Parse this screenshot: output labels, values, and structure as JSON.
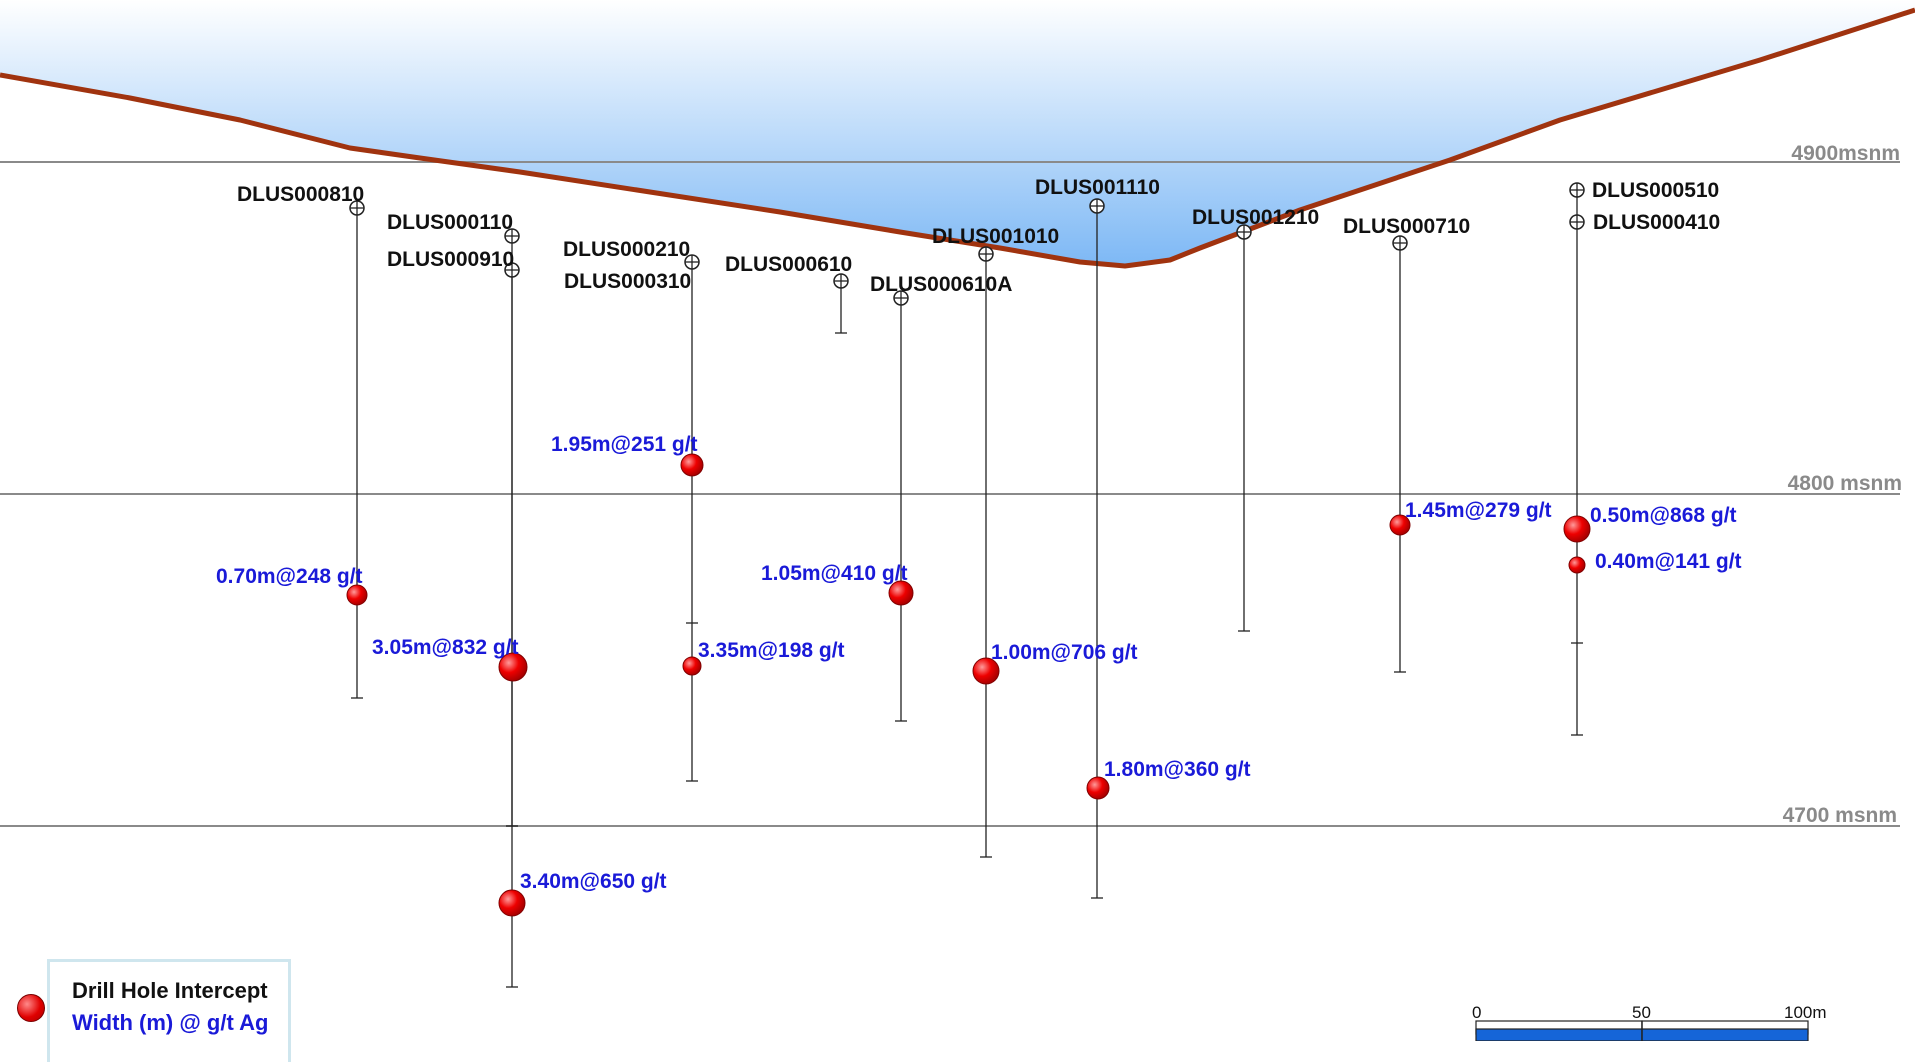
{
  "elevations": [
    {
      "label": "4900msnm",
      "y": 4900
    },
    {
      "label": "4800 msnm",
      "y": 4800
    },
    {
      "label": "4700 msnm",
      "y": 4700
    }
  ],
  "holes": [
    {
      "id": "DLUS000810",
      "collar_elev": 4886,
      "depth_elev": 4747
    },
    {
      "id": "DLUS000110",
      "collar_elev": 4877,
      "depth_elev": 4700
    },
    {
      "id": "DLUS000910",
      "collar_elev": 4867,
      "depth_elev": 4625
    },
    {
      "id": "DLUS000210",
      "collar_elev": 4868,
      "depth_elev": 4762
    },
    {
      "id": "DLUS000310",
      "collar_elev": 4868,
      "depth_elev": 4728
    },
    {
      "id": "DLUS000610",
      "collar_elev": 4864,
      "depth_elev": 4846
    },
    {
      "id": "DLUS000610A",
      "collar_elev": 4859,
      "depth_elev": 4759
    },
    {
      "id": "DLUS001010",
      "collar_elev": 4872,
      "depth_elev": 4710
    },
    {
      "id": "DLUS001110",
      "collar_elev": 4887,
      "depth_elev": 4698
    },
    {
      "id": "DLUS001210",
      "collar_elev": 4879,
      "depth_elev": 4772
    },
    {
      "id": "DLUS000710",
      "collar_elev": 4875,
      "depth_elev": 4750
    },
    {
      "id": "DLUS000510",
      "collar_elev": 4891,
      "depth_elev": 4738
    },
    {
      "id": "DLUS000410",
      "collar_elev": 4881,
      "depth_elev": 4766
    }
  ],
  "intercepts": [
    {
      "label": "0.70m@248 g/t",
      "width_m": 0.7,
      "grade_gpt": 248
    },
    {
      "label": "3.05m@832 g/t",
      "width_m": 3.05,
      "grade_gpt": 832
    },
    {
      "label": "3.40m@650 g/t",
      "width_m": 3.4,
      "grade_gpt": 650
    },
    {
      "label": "1.95m@251 g/t",
      "width_m": 1.95,
      "grade_gpt": 251
    },
    {
      "label": "3.35m@198 g/t",
      "width_m": 3.35,
      "grade_gpt": 198
    },
    {
      "label": "1.05m@410 g/t",
      "width_m": 1.05,
      "grade_gpt": 410
    },
    {
      "label": "1.00m@706 g/t",
      "width_m": 1.0,
      "grade_gpt": 706
    },
    {
      "label": "1.80m@360 g/t",
      "width_m": 1.8,
      "grade_gpt": 360
    },
    {
      "label": "1.45m@279 g/t",
      "width_m": 1.45,
      "grade_gpt": 279
    },
    {
      "label": "0.50m@868 g/t",
      "width_m": 0.5,
      "grade_gpt": 868
    },
    {
      "label": "0.40m@141 g/t",
      "width_m": 0.4,
      "grade_gpt": 141
    }
  ],
  "legend": {
    "title": "Drill Hole Intercept",
    "subtitle": "Width (m) @ g/t Ag"
  },
  "scale_bar": {
    "ticks": [
      "0",
      "50",
      "100m"
    ]
  },
  "colors": {
    "topography": "#a0330f",
    "sky_top": "#ffffff",
    "sky_bottom": "#7db8f5",
    "intercept": "#e00000",
    "intercept_text": "#1a1ad8",
    "elevation_line": "#8a8a8a",
    "scale_fill": "#1565d8"
  }
}
